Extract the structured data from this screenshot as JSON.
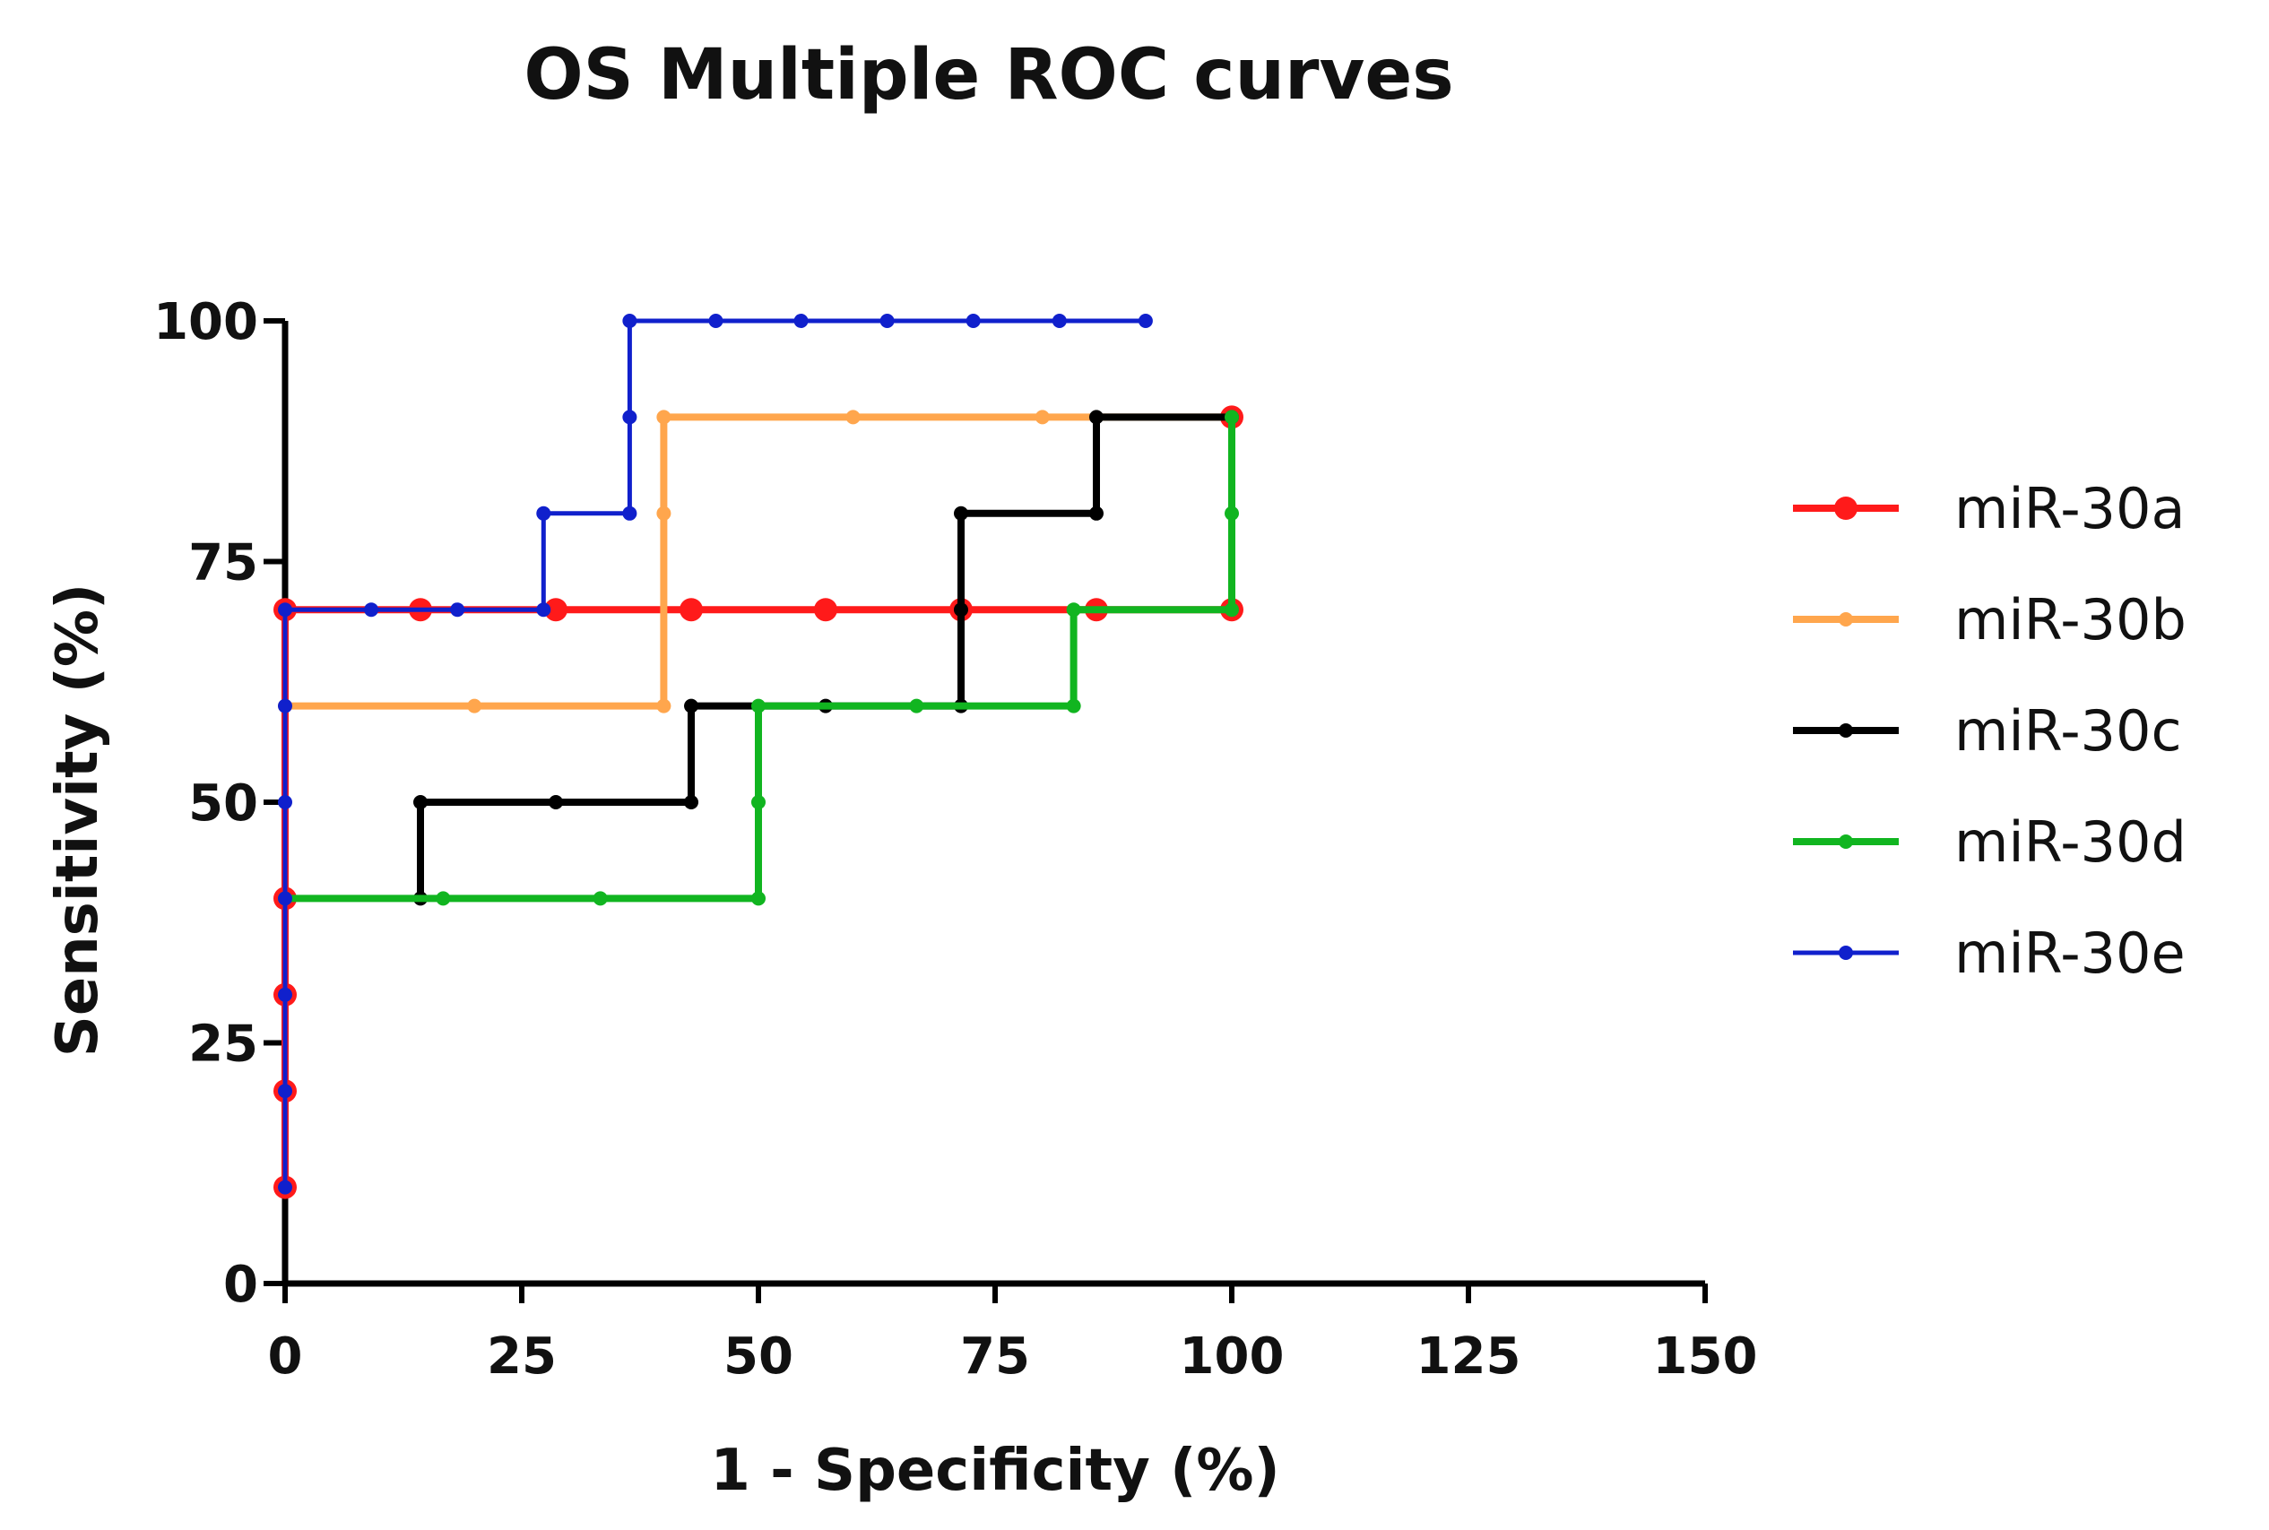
{
  "chart_data": {
    "type": "line",
    "step": true,
    "title": "OS Multiple ROC curves",
    "xlabel": "1 - Specificity (%)",
    "ylabel": "Sensitivity (%)",
    "xlim": [
      0,
      150
    ],
    "ylim": [
      0,
      100
    ],
    "xticks": [
      0,
      25,
      50,
      75,
      100,
      125,
      150
    ],
    "yticks": [
      0,
      25,
      50,
      75,
      100
    ],
    "xtick_labels": [
      "0",
      "25",
      "50",
      "75",
      "100",
      "125",
      "150"
    ],
    "ytick_labels": [
      "0",
      "25",
      "50",
      "75",
      "100"
    ],
    "legend_position": "right",
    "series": [
      {
        "name": "miR-30a",
        "color": "#ff1a1a",
        "line_width": "thick",
        "marker": "large-dot",
        "path": [
          [
            0,
            10
          ],
          [
            0,
            20
          ],
          [
            0,
            30
          ],
          [
            0,
            40
          ],
          [
            0,
            70
          ],
          [
            14.3,
            70
          ],
          [
            28.6,
            70
          ],
          [
            42.9,
            70
          ],
          [
            57.1,
            70
          ],
          [
            71.4,
            70
          ],
          [
            85.7,
            70
          ],
          [
            100,
            70
          ],
          [
            100,
            90
          ]
        ]
      },
      {
        "name": "miR-30b",
        "color": "#ffa64d",
        "line_width": "thick",
        "marker": "small-dot",
        "path": [
          [
            0,
            60
          ],
          [
            20,
            60
          ],
          [
            40,
            60
          ],
          [
            40,
            80
          ],
          [
            40,
            90
          ],
          [
            60,
            90
          ],
          [
            80,
            90
          ],
          [
            100,
            90
          ]
        ]
      },
      {
        "name": "miR-30c",
        "color": "#000000",
        "line_width": "thick",
        "marker": "small-dot",
        "path": [
          [
            14.3,
            40
          ],
          [
            14.3,
            50
          ],
          [
            28.6,
            50
          ],
          [
            42.9,
            50
          ],
          [
            42.9,
            60
          ],
          [
            57.1,
            60
          ],
          [
            71.4,
            60
          ],
          [
            71.4,
            70
          ],
          [
            71.4,
            80
          ],
          [
            85.7,
            80
          ],
          [
            85.7,
            90
          ],
          [
            100,
            90
          ]
        ]
      },
      {
        "name": "miR-30d",
        "color": "#11b520",
        "line_width": "thick",
        "marker": "small-dot",
        "path": [
          [
            0,
            40
          ],
          [
            16.7,
            40
          ],
          [
            33.3,
            40
          ],
          [
            50,
            40
          ],
          [
            50,
            50
          ],
          [
            50,
            60
          ],
          [
            66.7,
            60
          ],
          [
            83.3,
            60
          ],
          [
            83.3,
            70
          ],
          [
            100,
            70
          ],
          [
            100,
            80
          ],
          [
            100,
            90
          ]
        ]
      },
      {
        "name": "miR-30e",
        "color": "#1020cc",
        "line_width": "medium",
        "marker": "small-dot",
        "path": [
          [
            0,
            10
          ],
          [
            0,
            20
          ],
          [
            0,
            30
          ],
          [
            0,
            40
          ],
          [
            0,
            50
          ],
          [
            0,
            60
          ],
          [
            0,
            70
          ],
          [
            9.1,
            70
          ],
          [
            18.2,
            70
          ],
          [
            27.3,
            70
          ],
          [
            27.3,
            80
          ],
          [
            36.4,
            80
          ],
          [
            36.4,
            90
          ],
          [
            36.4,
            100
          ],
          [
            45.5,
            100
          ],
          [
            54.5,
            100
          ],
          [
            63.6,
            100
          ],
          [
            72.7,
            100
          ],
          [
            81.8,
            100
          ],
          [
            90.9,
            100
          ]
        ]
      }
    ]
  }
}
